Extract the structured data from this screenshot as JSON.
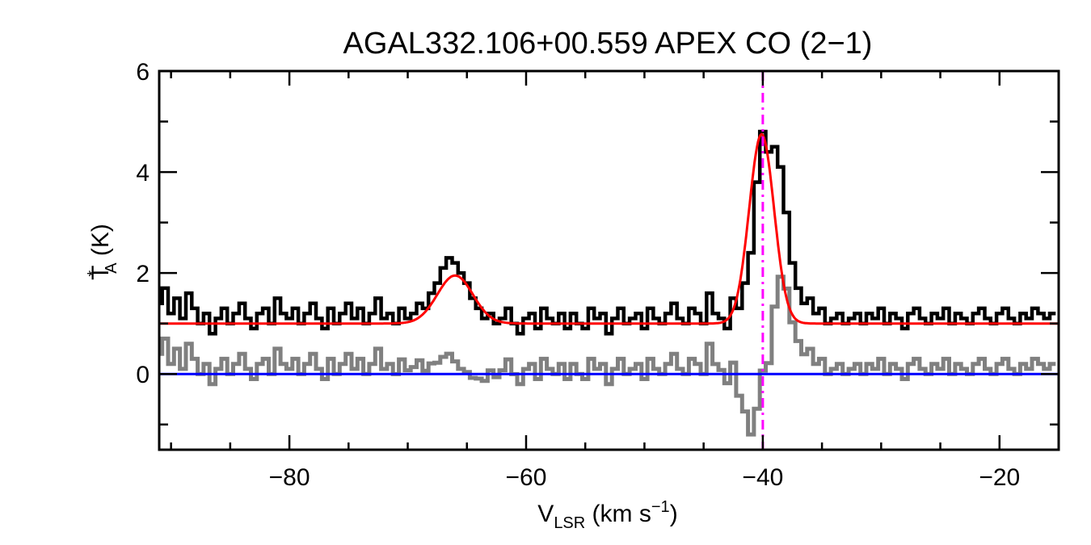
{
  "chart_data": {
    "type": "line",
    "title": "AGAL332.106+00.559  APEX CO (2−1)",
    "xlabel": {
      "main": "V",
      "sub": "LSR",
      "rest": " (km s",
      "sup": "−1",
      "end": ")"
    },
    "ylabel": {
      "main": "T",
      "sup": "*",
      "sub": "A",
      "rest": " (K)"
    },
    "xlim": [
      -91,
      -15
    ],
    "ylim": [
      -1.5,
      6
    ],
    "x_ticks": [
      -80,
      -60,
      -40,
      -20
    ],
    "x_tick_labels": [
      "−80",
      "−60",
      "−40",
      "−20"
    ],
    "y_ticks": [
      0,
      2,
      4,
      6
    ],
    "y_tick_labels": [
      "0",
      "2",
      "4",
      "6"
    ],
    "grid": false,
    "spectrum": {
      "color": "#000000",
      "x_start": -91,
      "x_step": 0.5,
      "values": [
        1.4,
        1.7,
        1.2,
        1.5,
        1.1,
        1.6,
        1.3,
        1.0,
        1.2,
        0.8,
        1.1,
        1.3,
        1.0,
        1.2,
        1.4,
        1.1,
        0.9,
        1.2,
        1.3,
        1.0,
        1.5,
        1.2,
        1.1,
        1.3,
        1.0,
        1.2,
        1.4,
        1.1,
        0.9,
        1.3,
        1.0,
        1.2,
        1.4,
        1.1,
        1.3,
        1.0,
        1.2,
        1.5,
        1.1,
        1.2,
        1.0,
        1.3,
        1.1,
        1.2,
        1.4,
        1.3,
        1.6,
        1.8,
        2.1,
        2.3,
        2.2,
        2.0,
        1.8,
        1.5,
        1.3,
        1.1,
        1.2,
        1.0,
        1.1,
        1.3,
        1.0,
        0.8,
        1.1,
        1.2,
        0.9,
        1.3,
        1.1,
        1.0,
        1.2,
        0.9,
        1.2,
        1.0,
        0.9,
        1.3,
        1.1,
        1.2,
        0.8,
        1.1,
        1.3,
        1.0,
        1.1,
        1.2,
        0.9,
        1.3,
        1.1,
        1.0,
        1.2,
        1.4,
        1.1,
        1.0,
        1.3,
        1.2,
        1.0,
        1.6,
        1.2,
        1.1,
        0.9,
        1.5,
        1.3,
        1.8,
        2.4,
        3.8,
        4.8,
        4.4,
        4.5,
        4.1,
        3.2,
        2.2,
        1.7,
        1.4,
        1.5,
        1.2,
        1.3,
        1.0,
        1.1,
        1.2,
        1.0,
        1.1,
        1.2,
        1.0,
        1.2,
        1.1,
        1.3,
        1.0,
        1.2,
        1.1,
        0.9,
        1.2,
        1.3,
        1.1,
        1.0,
        1.2,
        1.1,
        1.3,
        1.0,
        1.2,
        1.1,
        1.0,
        1.2,
        1.3,
        1.1,
        1.0,
        1.2,
        1.3,
        1.1,
        1.0,
        1.2,
        1.1,
        1.3,
        1.2,
        1.1,
        1.2
      ]
    },
    "fit": {
      "color": "#ff0000",
      "baseline": 1.0,
      "components": [
        {
          "center": -66.0,
          "amplitude": 0.95,
          "sigma": 1.5
        },
        {
          "center": -40.1,
          "amplitude": 3.75,
          "sigma": 1.05
        }
      ]
    },
    "residual": {
      "color": "#808080"
    },
    "zero_line": {
      "y": 0,
      "color": "#0000ff"
    },
    "velocity_marker": {
      "x": -40,
      "color": "#ff00ff",
      "style": "dash-dot"
    }
  }
}
